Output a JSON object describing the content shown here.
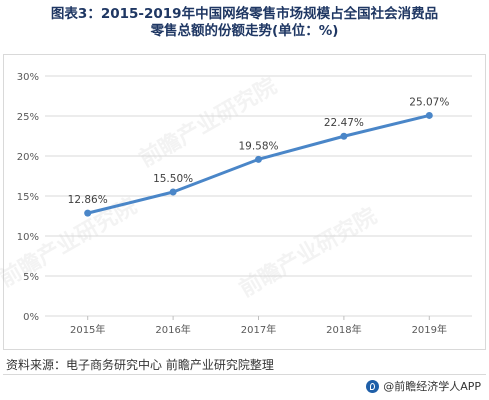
{
  "title": {
    "line1": "图表3：2015-2019年中国网络零售市场规模占全国社会消费品",
    "line2": "零售总额的份额走势(单位：%)"
  },
  "chart_data": {
    "type": "line",
    "title": "图表3：2015-2019年中国网络零售市场规模占全国社会消费品零售总额的份额走势(单位：%)",
    "xlabel": "",
    "ylabel": "",
    "categories": [
      "2015年",
      "2016年",
      "2017年",
      "2018年",
      "2019年"
    ],
    "series": [
      {
        "values": [
          12.86,
          15.5,
          19.58,
          22.47,
          25.07
        ],
        "color": "#4a86c8"
      }
    ],
    "data_labels": [
      "12.86%",
      "15.50%",
      "19.58%",
      "22.47%",
      "25.07%"
    ],
    "y_ticks": [
      "0%",
      "5%",
      "10%",
      "15%",
      "20%",
      "25%",
      "30%"
    ],
    "ylim": [
      0,
      30
    ],
    "grid": true,
    "legend": "none"
  },
  "watermark": "前瞻产业研究院",
  "source": "资料来源：电子商务研究中心 前瞻产业研究院整理",
  "brand": "@前瞻经济学人APP",
  "colors": {
    "line": "#4a86c8",
    "title": "#1f3763",
    "grid": "#d9d9d9"
  },
  "icons": {
    "brand_logo": "qianzhan-logo-icon"
  }
}
